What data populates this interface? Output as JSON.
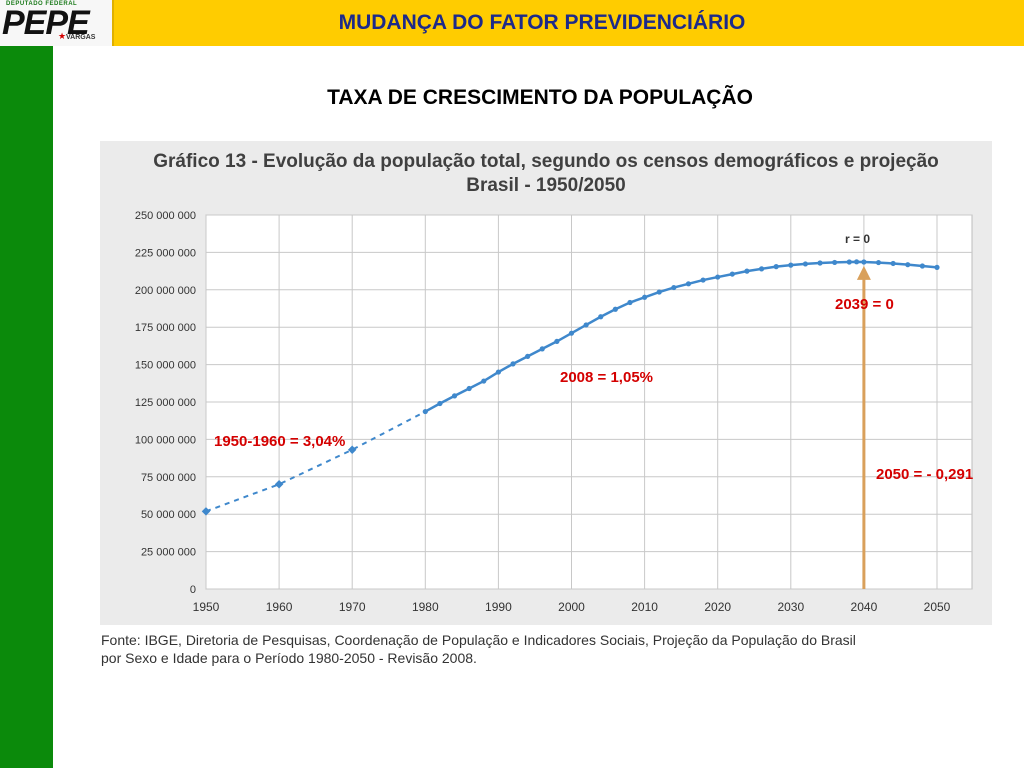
{
  "header": {
    "logo_top": "DEPUTADO FEDERAL",
    "logo_name": "PEPE",
    "logo_sub": "VARGAS",
    "title": "MUDANÇA DO FATOR PREVIDENCIÁRIO"
  },
  "subtitle": "TAXA DE CRESCIMENTO DA POPULAÇÃO",
  "chart_title_line1": "Gráfico 13 - Evolução da população total, segundo os censos demográficos e projeção",
  "chart_title_line2": "Brasil - 1950/2050",
  "source_line1": "Fonte: IBGE, Diretoria de Pesquisas, Coordenação de População e Indicadores Sociais, Projeção da População do Brasil",
  "source_line2": "por Sexo e Idade para o Período 1980-2050 - Revisão 2008.",
  "annotations": {
    "a1950": "1950-1960 = 3,04%",
    "a2008": "2008 = 1,05%",
    "a2039": "2039 = 0",
    "a2050": "2050 = - 0,291",
    "r_label": "r = 0"
  },
  "colors": {
    "series": "#3f88cc",
    "arrow": "#d9a05b",
    "annotation": "#d40000",
    "header": "#ffcc00",
    "sidebar": "#0b8a0b"
  },
  "chart_data": {
    "type": "line",
    "title": "Gráfico 13 - Evolução da população total, segundo os censos demográficos e projeção Brasil - 1950/2050",
    "xlim": [
      1950,
      2050
    ],
    "ylim": [
      0,
      250000000
    ],
    "x_ticks": [
      "1950",
      "1960",
      "1970",
      "1980",
      "1990",
      "2000",
      "2010",
      "2020",
      "2030",
      "2040",
      "2050"
    ],
    "y_ticks": [
      "0",
      "25 000 000",
      "50 000 000",
      "75 000 000",
      "100 000 000",
      "125 000 000",
      "150 000 000",
      "175 000 000",
      "200 000 000",
      "225 000 000",
      "250 000 000"
    ],
    "grid": true,
    "census_points": [
      {
        "x": 1950,
        "y": 51900000
      },
      {
        "x": 1960,
        "y": 70000000
      },
      {
        "x": 1970,
        "y": 93100000
      }
    ],
    "annual_points": [
      {
        "x": 1980,
        "y": 118600000
      },
      {
        "x": 1982,
        "y": 124000000
      },
      {
        "x": 1984,
        "y": 129100000
      },
      {
        "x": 1986,
        "y": 134000000
      },
      {
        "x": 1988,
        "y": 139000000
      },
      {
        "x": 1990,
        "y": 145000000
      },
      {
        "x": 1992,
        "y": 150500000
      },
      {
        "x": 1994,
        "y": 155500000
      },
      {
        "x": 1996,
        "y": 160500000
      },
      {
        "x": 1998,
        "y": 165500000
      },
      {
        "x": 2000,
        "y": 171000000
      },
      {
        "x": 2002,
        "y": 176500000
      },
      {
        "x": 2004,
        "y": 182000000
      },
      {
        "x": 2006,
        "y": 187000000
      },
      {
        "x": 2008,
        "y": 191500000
      },
      {
        "x": 2010,
        "y": 195000000
      },
      {
        "x": 2012,
        "y": 198500000
      },
      {
        "x": 2014,
        "y": 201500000
      },
      {
        "x": 2016,
        "y": 204000000
      },
      {
        "x": 2018,
        "y": 206500000
      },
      {
        "x": 2020,
        "y": 208500000
      },
      {
        "x": 2022,
        "y": 210500000
      },
      {
        "x": 2024,
        "y": 212500000
      },
      {
        "x": 2026,
        "y": 214000000
      },
      {
        "x": 2028,
        "y": 215500000
      },
      {
        "x": 2030,
        "y": 216500000
      },
      {
        "x": 2032,
        "y": 217300000
      },
      {
        "x": 2034,
        "y": 217900000
      },
      {
        "x": 2036,
        "y": 218300000
      },
      {
        "x": 2038,
        "y": 218600000
      },
      {
        "x": 2039,
        "y": 218700000
      },
      {
        "x": 2040,
        "y": 218600000
      },
      {
        "x": 2042,
        "y": 218200000
      },
      {
        "x": 2044,
        "y": 217600000
      },
      {
        "x": 2046,
        "y": 216800000
      },
      {
        "x": 2048,
        "y": 215900000
      },
      {
        "x": 2050,
        "y": 215000000
      }
    ],
    "marker_year": 2039
  }
}
